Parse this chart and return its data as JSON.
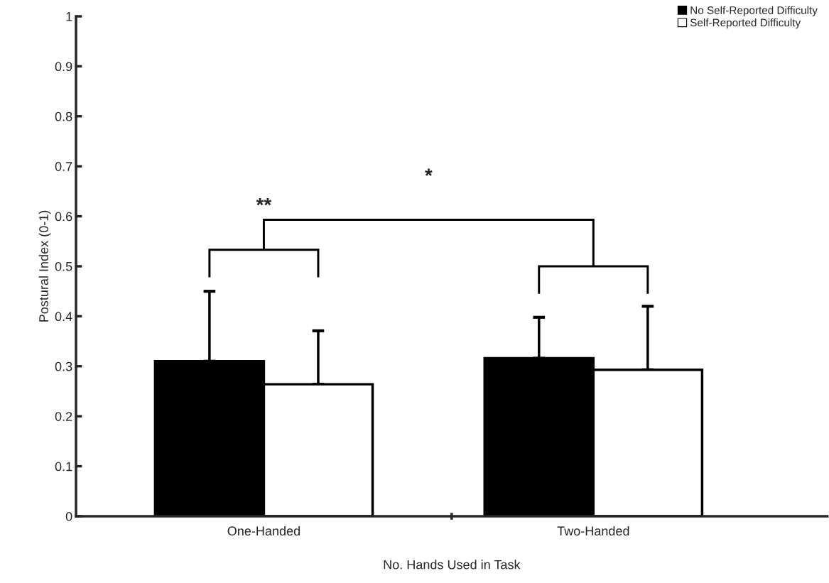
{
  "chart_data": {
    "type": "bar",
    "xlabel": "No. Hands Used in Task",
    "ylabel": "Postural Index (0-1)",
    "categories": [
      "One-Handed",
      "Two-Handed"
    ],
    "series": [
      {
        "name": "No Self-Reported Difficulty",
        "color": "#000000",
        "values": [
          0.31,
          0.316
        ],
        "errors": [
          [
            0.31,
            0.45
          ],
          [
            0.316,
            0.398
          ]
        ]
      },
      {
        "name": "Self-Reported Difficulty",
        "color": "#ffffff",
        "values": [
          0.264,
          0.293
        ],
        "errors": [
          [
            0.264,
            0.371
          ],
          [
            0.293,
            0.42
          ]
        ]
      }
    ],
    "ylim": [
      0,
      1
    ],
    "yticks": [
      0,
      0.1,
      0.2,
      0.3,
      0.4,
      0.5,
      0.6,
      0.7,
      0.8,
      0.9,
      1
    ],
    "annotations": [
      "**",
      "*"
    ],
    "legend": "top right",
    "grid": false
  }
}
